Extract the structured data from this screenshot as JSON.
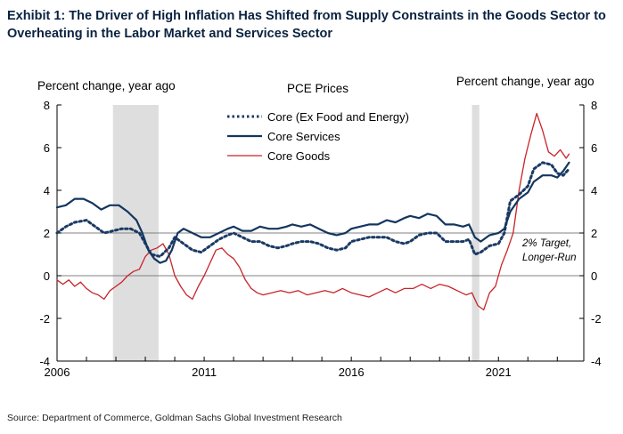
{
  "title_lines": [
    "Exhibit 1: The Driver of High Inflation Has Shifted from Supply Constraints in the Goods Sector to",
    "Overheating in the Labor Market and Services Sector"
  ],
  "source": "Source: Department of Commerce, Goldman Sachs Global Investment Research",
  "colors": {
    "core": "#1a3a64",
    "services": "#13365f",
    "goods": "#c8242a",
    "recession": "#dedede"
  },
  "chart_data": {
    "type": "line",
    "title": "PCE Prices",
    "ylabel_left": "Percent change, year ago",
    "ylabel_right": "Percent change, year ago",
    "ylim": [
      -4,
      8
    ],
    "y_ticks": [
      "-4",
      "-2",
      "0",
      "2",
      "4",
      "6",
      "8"
    ],
    "xlim": [
      2006.0,
      2023.9
    ],
    "x_ticks": [
      {
        "value": 2006,
        "label": "2006"
      },
      {
        "value": 2011,
        "label": "2011"
      },
      {
        "value": 2016,
        "label": "2016"
      },
      {
        "value": 2021,
        "label": "2021"
      }
    ],
    "reference_lines": [
      0,
      2
    ],
    "recessions": [
      [
        2007.9,
        2009.45
      ],
      [
        2020.1,
        2020.35
      ]
    ],
    "annotation": [
      "2% Target,",
      "Longer-Run"
    ],
    "series": [
      {
        "name": "Core (Ex Food and Energy)",
        "style": "dotted",
        "x": [
          2006.0,
          2006.3,
          2006.6,
          2007.0,
          2007.3,
          2007.6,
          2007.9,
          2008.2,
          2008.5,
          2008.8,
          2009.0,
          2009.2,
          2009.5,
          2009.8,
          2010.0,
          2010.3,
          2010.6,
          2010.9,
          2011.2,
          2011.5,
          2011.8,
          2012.0,
          2012.3,
          2012.6,
          2012.9,
          2013.2,
          2013.5,
          2013.8,
          2014.0,
          2014.3,
          2014.6,
          2014.9,
          2015.2,
          2015.5,
          2015.8,
          2016.0,
          2016.3,
          2016.6,
          2016.9,
          2017.2,
          2017.5,
          2017.8,
          2018.0,
          2018.3,
          2018.6,
          2018.9,
          2019.2,
          2019.5,
          2019.8,
          2020.0,
          2020.2,
          2020.4,
          2020.7,
          2021.0,
          2021.2,
          2021.4,
          2021.7,
          2022.0,
          2022.2,
          2022.5,
          2022.8,
          2023.0,
          2023.2,
          2023.4
        ],
        "values": [
          2.0,
          2.3,
          2.5,
          2.6,
          2.3,
          2.0,
          2.1,
          2.2,
          2.2,
          2.0,
          1.5,
          1.0,
          0.9,
          1.3,
          1.8,
          1.5,
          1.2,
          1.1,
          1.4,
          1.7,
          1.9,
          2.0,
          1.8,
          1.6,
          1.6,
          1.4,
          1.3,
          1.4,
          1.5,
          1.6,
          1.6,
          1.5,
          1.3,
          1.2,
          1.3,
          1.6,
          1.7,
          1.8,
          1.8,
          1.8,
          1.6,
          1.5,
          1.6,
          1.9,
          2.0,
          2.0,
          1.6,
          1.6,
          1.6,
          1.7,
          1.0,
          1.1,
          1.4,
          1.5,
          2.0,
          3.5,
          3.8,
          4.2,
          5.0,
          5.3,
          5.2,
          4.8,
          4.7,
          5.0
        ]
      },
      {
        "name": "Core Services",
        "style": "solid",
        "x": [
          2006.0,
          2006.3,
          2006.6,
          2006.9,
          2007.2,
          2007.5,
          2007.8,
          2008.1,
          2008.4,
          2008.7,
          2008.9,
          2009.1,
          2009.3,
          2009.5,
          2009.7,
          2009.9,
          2010.1,
          2010.3,
          2010.6,
          2010.9,
          2011.2,
          2011.5,
          2011.8,
          2012.0,
          2012.3,
          2012.6,
          2012.9,
          2013.2,
          2013.5,
          2013.8,
          2014.0,
          2014.3,
          2014.6,
          2014.9,
          2015.2,
          2015.5,
          2015.8,
          2016.0,
          2016.3,
          2016.6,
          2016.9,
          2017.2,
          2017.5,
          2017.8,
          2018.0,
          2018.3,
          2018.6,
          2018.9,
          2019.2,
          2019.5,
          2019.8,
          2020.0,
          2020.2,
          2020.4,
          2020.7,
          2021.0,
          2021.2,
          2021.4,
          2021.7,
          2022.0,
          2022.2,
          2022.5,
          2022.8,
          2023.0,
          2023.2,
          2023.4
        ],
        "values": [
          3.2,
          3.3,
          3.6,
          3.6,
          3.4,
          3.1,
          3.3,
          3.3,
          3.0,
          2.6,
          2.0,
          1.2,
          0.8,
          0.6,
          0.7,
          1.2,
          2.0,
          2.2,
          2.0,
          1.8,
          1.8,
          2.0,
          2.2,
          2.3,
          2.1,
          2.1,
          2.3,
          2.2,
          2.2,
          2.3,
          2.4,
          2.3,
          2.4,
          2.2,
          2.0,
          1.9,
          2.0,
          2.2,
          2.3,
          2.4,
          2.4,
          2.6,
          2.5,
          2.7,
          2.8,
          2.7,
          2.9,
          2.8,
          2.4,
          2.4,
          2.3,
          2.4,
          1.8,
          1.6,
          1.9,
          2.0,
          2.2,
          3.0,
          3.6,
          3.9,
          4.4,
          4.7,
          4.7,
          4.6,
          4.9,
          5.3
        ]
      },
      {
        "name": "Core Goods",
        "style": "solid",
        "x": [
          2006.0,
          2006.2,
          2006.4,
          2006.6,
          2006.8,
          2007.0,
          2007.2,
          2007.4,
          2007.6,
          2007.8,
          2008.0,
          2008.2,
          2008.4,
          2008.6,
          2008.8,
          2009.0,
          2009.2,
          2009.4,
          2009.6,
          2009.8,
          2010.0,
          2010.2,
          2010.4,
          2010.6,
          2010.8,
          2011.0,
          2011.2,
          2011.4,
          2011.6,
          2011.8,
          2012.0,
          2012.2,
          2012.4,
          2012.6,
          2012.8,
          2013.0,
          2013.3,
          2013.6,
          2013.9,
          2014.2,
          2014.5,
          2014.8,
          2015.1,
          2015.4,
          2015.7,
          2016.0,
          2016.3,
          2016.6,
          2016.9,
          2017.2,
          2017.5,
          2017.8,
          2018.1,
          2018.4,
          2018.7,
          2019.0,
          2019.3,
          2019.6,
          2019.9,
          2020.1,
          2020.3,
          2020.5,
          2020.7,
          2020.9,
          2021.1,
          2021.3,
          2021.5,
          2021.7,
          2021.9,
          2022.1,
          2022.3,
          2022.5,
          2022.7,
          2022.9,
          2023.1,
          2023.3,
          2023.4
        ],
        "values": [
          -0.2,
          -0.4,
          -0.2,
          -0.5,
          -0.3,
          -0.6,
          -0.8,
          -0.9,
          -1.1,
          -0.7,
          -0.5,
          -0.3,
          0.0,
          0.2,
          0.3,
          0.9,
          1.2,
          1.3,
          1.5,
          1.0,
          0.0,
          -0.5,
          -0.9,
          -1.1,
          -0.5,
          0.0,
          0.6,
          1.2,
          1.3,
          1.0,
          0.8,
          0.4,
          -0.2,
          -0.6,
          -0.8,
          -0.9,
          -0.8,
          -0.7,
          -0.8,
          -0.7,
          -0.9,
          -0.8,
          -0.7,
          -0.8,
          -0.6,
          -0.8,
          -0.9,
          -1.0,
          -0.8,
          -0.6,
          -0.8,
          -0.6,
          -0.6,
          -0.4,
          -0.6,
          -0.4,
          -0.5,
          -0.7,
          -0.9,
          -0.8,
          -1.4,
          -1.6,
          -0.8,
          -0.5,
          0.5,
          1.2,
          2.0,
          4.0,
          5.5,
          6.6,
          7.6,
          6.8,
          5.8,
          5.6,
          5.9,
          5.5,
          5.7
        ]
      }
    ]
  }
}
